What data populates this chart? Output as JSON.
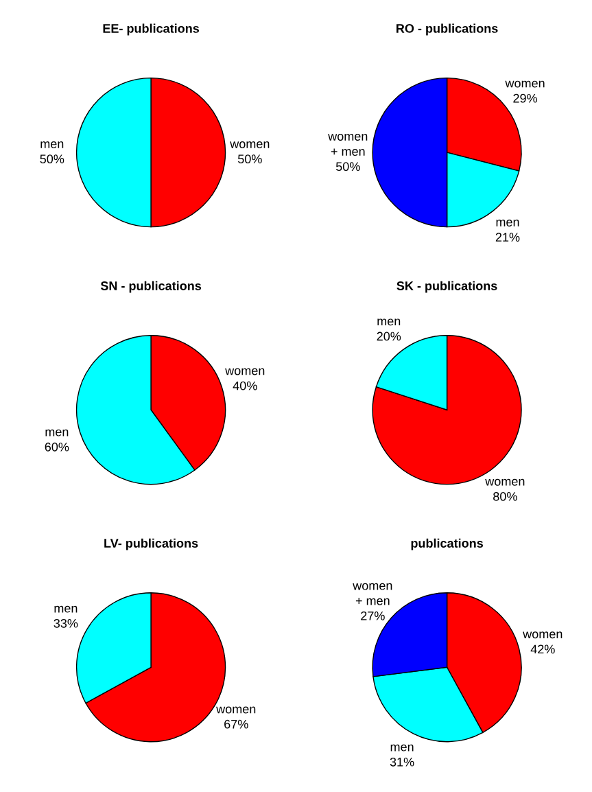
{
  "chart_data": [
    {
      "type": "pie",
      "title": "EE- publications",
      "categories": [
        "women",
        "men"
      ],
      "values": [
        50,
        50
      ],
      "value_labels": [
        "50%",
        "50%"
      ],
      "colors": [
        "#ff0000",
        "#00ffff"
      ]
    },
    {
      "type": "pie",
      "title": "RO - publications",
      "categories": [
        "women",
        "men",
        "women\n+ men"
      ],
      "values": [
        29,
        21,
        50
      ],
      "value_labels": [
        "29%",
        "21%",
        "50%"
      ],
      "colors": [
        "#ff0000",
        "#00ffff",
        "#0000ff"
      ]
    },
    {
      "type": "pie",
      "title": "SN - publications",
      "categories": [
        "women",
        "men"
      ],
      "values": [
        40,
        60
      ],
      "value_labels": [
        "40%",
        "60%"
      ],
      "colors": [
        "#ff0000",
        "#00ffff"
      ]
    },
    {
      "type": "pie",
      "title": "SK - publications",
      "categories": [
        "women",
        "men"
      ],
      "values": [
        80,
        20
      ],
      "value_labels": [
        "80%",
        "20%"
      ],
      "colors": [
        "#ff0000",
        "#00ffff"
      ]
    },
    {
      "type": "pie",
      "title": "LV- publications",
      "categories": [
        "women",
        "men"
      ],
      "values": [
        67,
        33
      ],
      "value_labels": [
        "67%",
        "33%"
      ],
      "colors": [
        "#ff0000",
        "#00ffff"
      ]
    },
    {
      "type": "pie",
      "title": "publications",
      "categories": [
        "women",
        "men",
        "women\n+ men"
      ],
      "values": [
        42,
        31,
        27
      ],
      "value_labels": [
        "42%",
        "31%",
        "27%"
      ],
      "colors": [
        "#ff0000",
        "#00ffff",
        "#0000ff"
      ]
    }
  ]
}
